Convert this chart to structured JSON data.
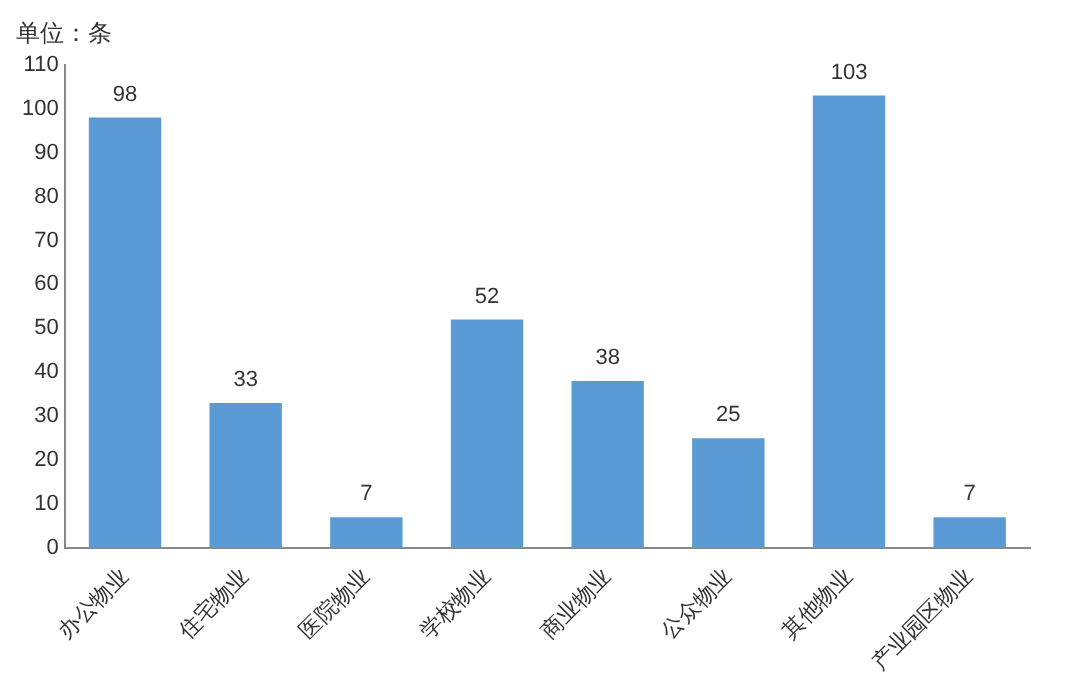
{
  "chart_data": {
    "type": "bar",
    "ylabel": "单位：条",
    "categories": [
      "办公物业",
      "住宅物业",
      "医院物业",
      "学校物业",
      "商业物业",
      "公众物业",
      "其他物业",
      "产业园区物业"
    ],
    "values": [
      98,
      33,
      7,
      52,
      38,
      25,
      103,
      7
    ],
    "color": "#5b9bd5",
    "ylim": [
      0,
      110
    ],
    "yticks": [
      0,
      10,
      20,
      30,
      40,
      50,
      60,
      70,
      80,
      90,
      100,
      110
    ],
    "grid": false,
    "data_labels": true
  }
}
